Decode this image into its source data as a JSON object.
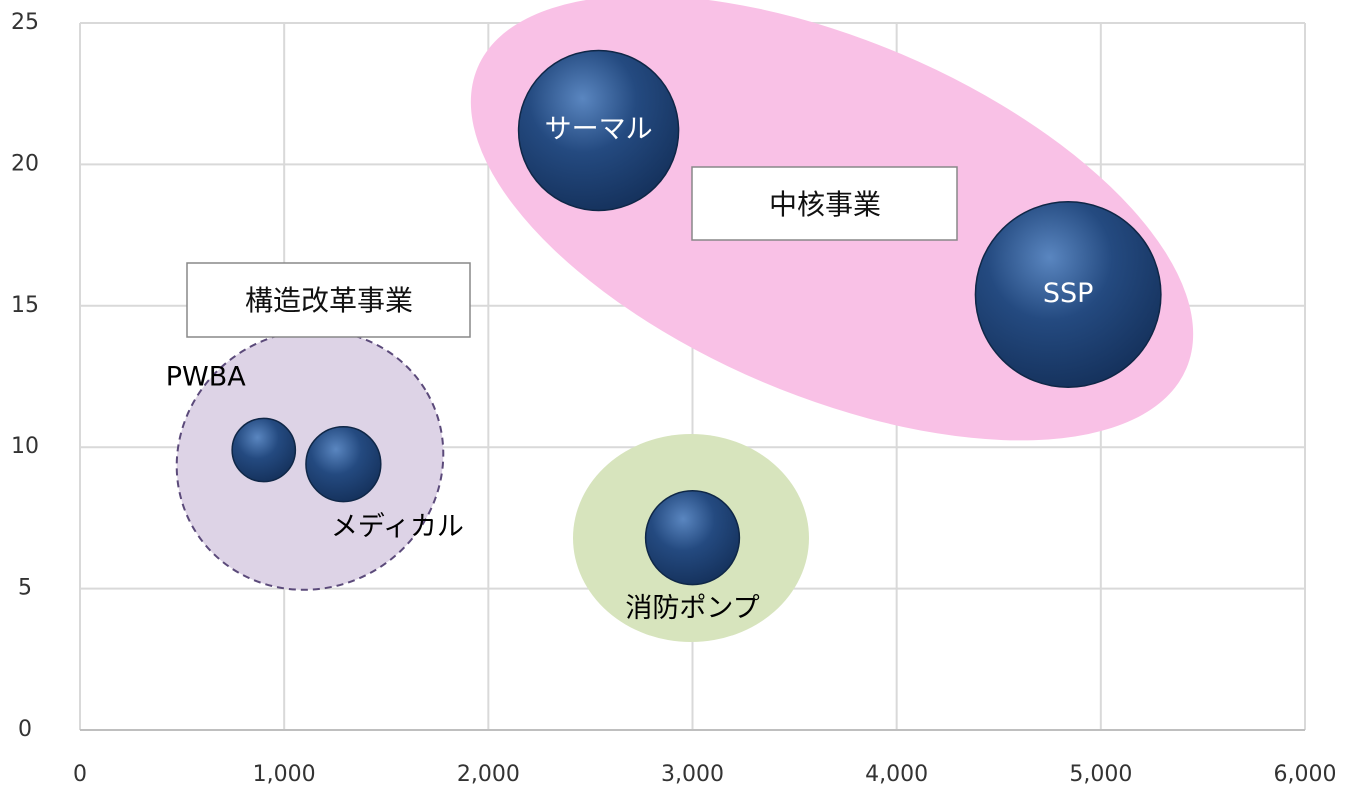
{
  "chart_data": {
    "type": "bubble",
    "labels": [
      "サーマル",
      "SSP",
      "PWBA",
      "メディカル",
      "消防ポンプ"
    ],
    "x": [
      2540,
      4840,
      900,
      1290,
      3000
    ],
    "y": [
      21.2,
      15.4,
      9.9,
      9.4,
      6.8
    ],
    "sizes": [
      64,
      86,
      10,
      14,
      22
    ],
    "color": "#1f3f73",
    "xlim": [
      0,
      6000
    ],
    "xticks": [
      0,
      {
        "value": 1000,
        "label": "1,000"
      },
      {
        "value": 2000,
        "label": "2,000"
      },
      {
        "value": 3000,
        "label": "3,000"
      },
      {
        "value": 4000,
        "label": "4,000"
      },
      {
        "value": 5000,
        "label": "5,000"
      },
      {
        "value": 6000,
        "label": "6,000"
      }
    ],
    "ylim": [
      0,
      25
    ],
    "yticks": [
      0,
      5,
      10,
      15,
      20,
      25
    ],
    "grid": true,
    "annotations": [
      "中核事業",
      "構造改革事業"
    ]
  }
}
